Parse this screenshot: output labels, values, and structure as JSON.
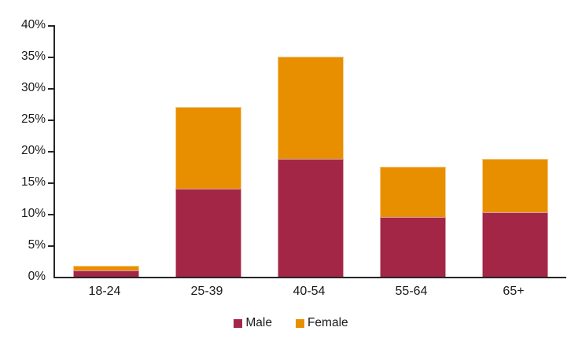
{
  "chart_data": {
    "type": "bar",
    "stacked": true,
    "title": "",
    "xlabel": "",
    "ylabel": "",
    "categories": [
      "18-24",
      "25-39",
      "40-54",
      "55-64",
      "65+"
    ],
    "series": [
      {
        "name": "Male",
        "color": "#A32646",
        "values": [
          1.0,
          14.0,
          18.8,
          9.5,
          10.2
        ]
      },
      {
        "name": "Female",
        "color": "#E88F00",
        "values": [
          0.8,
          13.0,
          16.2,
          8.0,
          8.6
        ]
      }
    ],
    "totals": [
      1.8,
      27.0,
      35.0,
      17.5,
      18.8
    ],
    "ylim": [
      0,
      40
    ],
    "ytick_step": 5,
    "ytick_labels": [
      "40%",
      "35%",
      "30%",
      "25%",
      "20%",
      "15%",
      "10%",
      "5%",
      "0%"
    ],
    "grid": false,
    "legend_position": "bottom-center"
  },
  "colors": {
    "axis": "#262626",
    "text": "#1a1a1a",
    "background": "#ffffff",
    "male": "#A32646",
    "female": "#E88F00"
  }
}
